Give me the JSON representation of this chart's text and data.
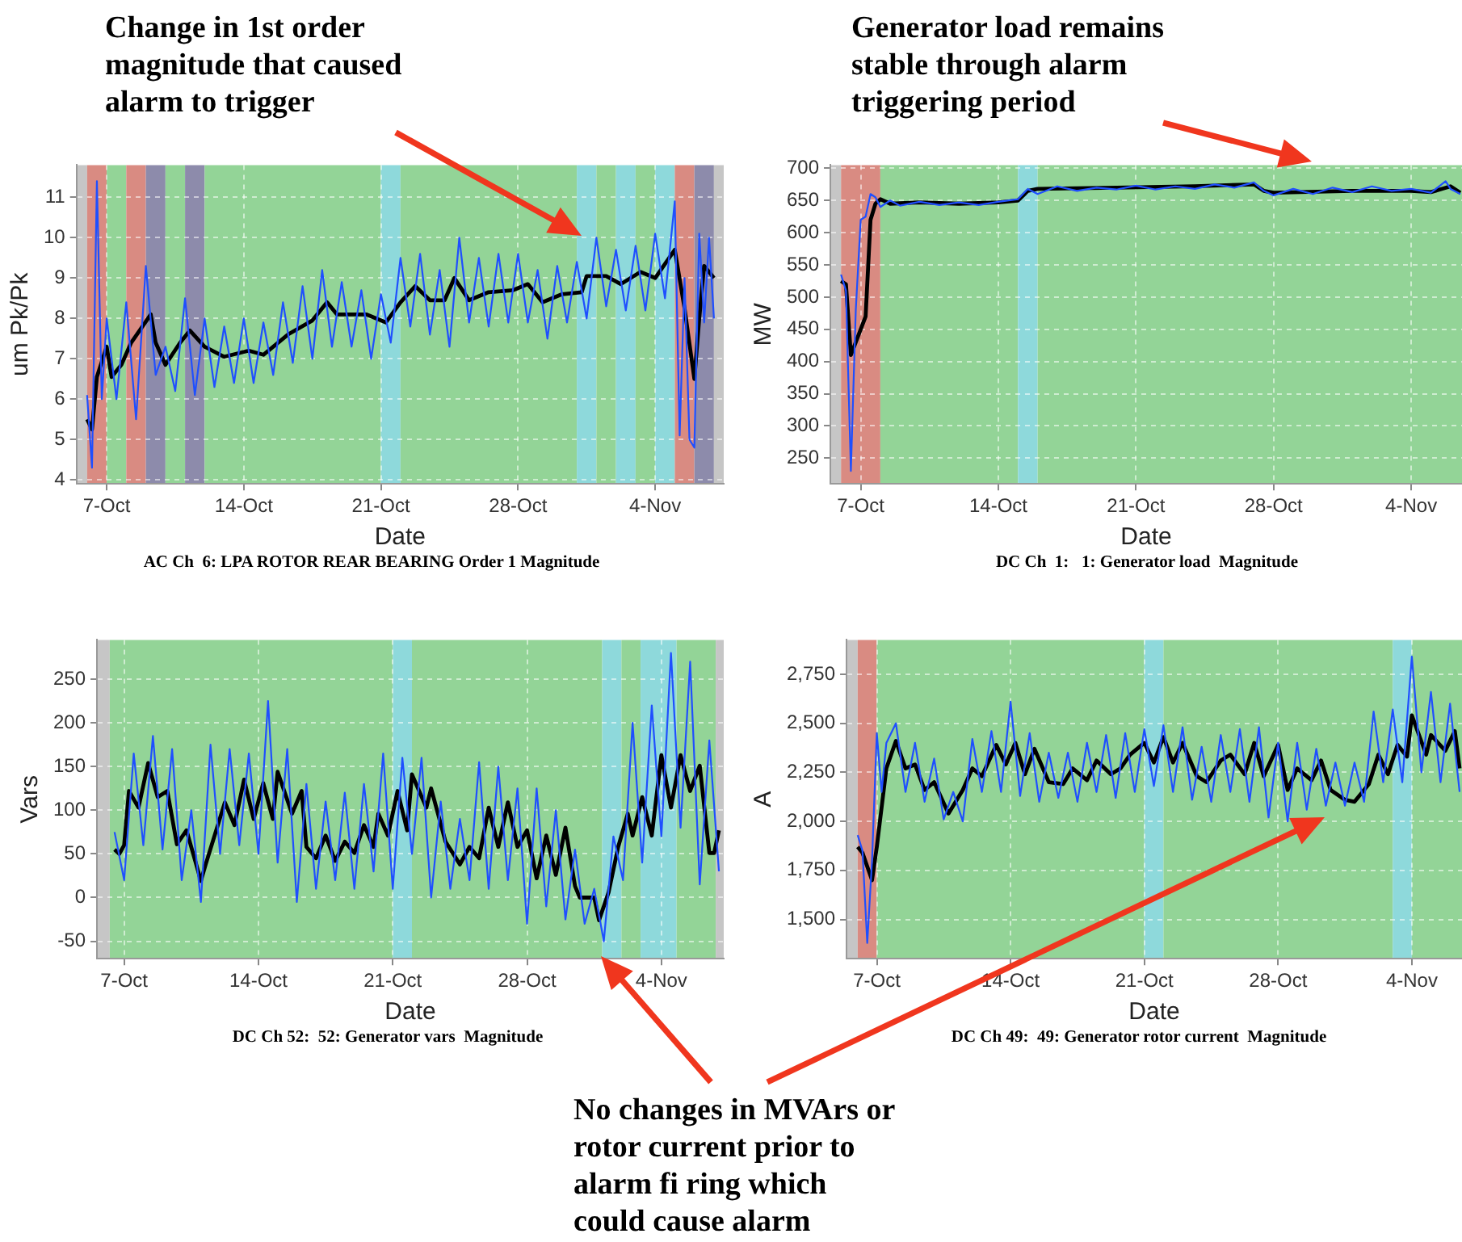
{
  "chart_data": [
    {
      "type": "line",
      "xlabel": "Date",
      "ylabel": "um Pk/Pk",
      "annotations": [
        "Change in 1st order magnitude that caused alarm to trigger",
        "AC Ch  6: LPA ROTOR REAR BEARING Order 1 Magnitude"
      ],
      "xlim": [
        "--10-05T11:00",
        "--11-07T12:00"
      ],
      "xticks": [
        {
          "value": "--10-07",
          "label": "7-Oct"
        },
        {
          "value": "--10-14",
          "label": "14-Oct"
        },
        {
          "value": "--10-21",
          "label": "21-Oct"
        },
        {
          "value": "--10-28",
          "label": "28-Oct"
        },
        {
          "value": "--11-04",
          "label": "4-Nov"
        }
      ],
      "ylim": [
        3.9,
        11.8
      ],
      "yticks": [
        4,
        5,
        6,
        7,
        8,
        9,
        10,
        11
      ],
      "grid": true,
      "marker": "none",
      "legend": false,
      "bands": [
        {
          "axis": "x",
          "from": "--10-05T11:00",
          "to": "--10-06",
          "color": "#c6c6c6"
        },
        {
          "axis": "x",
          "from": "--10-06",
          "to": "--10-07",
          "color": "#d98b82"
        },
        {
          "axis": "x",
          "from": "--10-07",
          "to": "--10-08",
          "color": "#93d497"
        },
        {
          "axis": "x",
          "from": "--10-08",
          "to": "--10-09",
          "color": "#d98b82"
        },
        {
          "axis": "x",
          "from": "--10-09",
          "to": "--10-10",
          "color": "#8d8bab"
        },
        {
          "axis": "x",
          "from": "--10-10",
          "to": "--10-11",
          "color": "#93d497"
        },
        {
          "axis": "x",
          "from": "--10-11",
          "to": "--10-12",
          "color": "#8d8bab"
        },
        {
          "axis": "x",
          "from": "--10-12",
          "to": "--10-21",
          "color": "#93d497"
        },
        {
          "axis": "x",
          "from": "--10-21",
          "to": "--10-22",
          "color": "#8ed9db"
        },
        {
          "axis": "x",
          "from": "--10-22",
          "to": "--10-31",
          "color": "#93d497"
        },
        {
          "axis": "x",
          "from": "--10-31",
          "to": "--11-01",
          "color": "#8ed9db"
        },
        {
          "axis": "x",
          "from": "--11-01",
          "to": "--11-02",
          "color": "#93d497"
        },
        {
          "axis": "x",
          "from": "--11-02",
          "to": "--11-03",
          "color": "#8ed9db"
        },
        {
          "axis": "x",
          "from": "--11-03",
          "to": "--11-04",
          "color": "#93d497"
        },
        {
          "axis": "x",
          "from": "--11-04",
          "to": "--11-05",
          "color": "#8ed9db"
        },
        {
          "axis": "x",
          "from": "--11-05",
          "to": "--11-06",
          "color": "#d98b82"
        },
        {
          "axis": "x",
          "from": "--11-06",
          "to": "--11-07",
          "color": "#8d8bab"
        },
        {
          "axis": "x",
          "from": "--11-07",
          "to": "--11-07T12:00",
          "color": "#c6c6c6"
        }
      ],
      "series": [
        {
          "color": "#1f4fff",
          "x": [
            "--10-06",
            "--10-06T06:00",
            "--10-06T12:00",
            "--10-06T18:00",
            "--10-07",
            "--10-07T12:00",
            "--10-08",
            "--10-08T12:00",
            "--10-09",
            "--10-09T12:00",
            "--10-10",
            "--10-10T12:00",
            "--10-11",
            "--10-11T12:00",
            "--10-12",
            "--10-12T12:00",
            "--10-13",
            "--10-13T12:00",
            "--10-14",
            "--10-14T12:00",
            "--10-15",
            "--10-15T12:00",
            "--10-16",
            "--10-16T12:00",
            "--10-17",
            "--10-17T12:00",
            "--10-18",
            "--10-18T12:00",
            "--10-19",
            "--10-19T12:00",
            "--10-20",
            "--10-20T12:00",
            "--10-21",
            "--10-21T12:00",
            "--10-22",
            "--10-22T12:00",
            "--10-23",
            "--10-23T12:00",
            "--10-24",
            "--10-24T12:00",
            "--10-25",
            "--10-25T12:00",
            "--10-26",
            "--10-26T12:00",
            "--10-27",
            "--10-27T12:00",
            "--10-28",
            "--10-28T12:00",
            "--10-29",
            "--10-29T12:00",
            "--10-30",
            "--10-30T12:00",
            "--10-31",
            "--10-31T12:00",
            "--11-01",
            "--11-01T12:00",
            "--11-02",
            "--11-02T12:00",
            "--11-03",
            "--11-03T12:00",
            "--11-04",
            "--11-04T12:00",
            "--11-05",
            "--11-05T06:00",
            "--11-05T12:00",
            "--11-05T18:00",
            "--11-06",
            "--11-06T06:00",
            "--11-06T12:00",
            "--11-06T18:00",
            "--11-07"
          ],
          "values": [
            6.1,
            4.3,
            11.4,
            6.0,
            8.0,
            6.0,
            8.4,
            5.5,
            9.3,
            6.6,
            7.3,
            6.2,
            8.5,
            6.1,
            8.0,
            6.3,
            7.8,
            6.4,
            8.0,
            6.4,
            7.9,
            6.6,
            8.4,
            6.9,
            8.8,
            7.0,
            9.2,
            7.3,
            8.9,
            7.3,
            8.7,
            7.0,
            8.6,
            7.4,
            9.5,
            7.8,
            9.6,
            7.6,
            9.2,
            7.3,
            10.0,
            7.9,
            9.5,
            7.8,
            9.6,
            7.9,
            9.6,
            7.9,
            9.2,
            7.5,
            9.3,
            7.9,
            9.4,
            8.0,
            10.0,
            8.3,
            9.7,
            8.2,
            9.8,
            8.2,
            10.1,
            8.5,
            10.9,
            5.1,
            9.0,
            5.0,
            4.8,
            10.1,
            7.9,
            10.0,
            8.0
          ]
        },
        {
          "color": "#000000",
          "x": [
            "--10-06",
            "--10-06T06:00",
            "--10-06T12:00",
            "--10-07",
            "--10-07T06:00",
            "--10-07T18:00",
            "--10-08T06:00",
            "--10-08T18:00",
            "--10-09T06:00",
            "--10-09T12:00",
            "--10-10",
            "--10-10T18:00",
            "--10-11T06:00",
            "--10-12",
            "--10-13",
            "--10-14T06:00",
            "--10-15",
            "--10-16T06:00",
            "--10-17T12:00",
            "--10-18T06:00",
            "--10-18T18:00",
            "--10-20T06:00",
            "--10-21T06:00",
            "--10-22",
            "--10-22T18:00",
            "--10-23T12:00",
            "--10-24T06:00",
            "--10-24T18:00",
            "--10-25T12:00",
            "--10-26T12:00",
            "--10-27T18:00",
            "--10-28T12:00",
            "--10-29T06:00",
            "--10-30T06:00",
            "--10-31T06:00",
            "--10-31T12:00",
            "--11-01T12:00",
            "--11-02T06:00",
            "--11-03T06:00",
            "--11-04",
            "--11-05",
            "--11-05T12:00",
            "--11-06",
            "--11-06T06:00",
            "--11-06T12:00",
            "--11-07"
          ],
          "values": [
            5.5,
            5.25,
            6.55,
            7.3,
            6.55,
            6.85,
            7.4,
            7.75,
            8.1,
            7.4,
            6.85,
            7.4,
            7.7,
            7.3,
            7.05,
            7.2,
            7.1,
            7.6,
            7.95,
            8.4,
            8.1,
            8.1,
            7.9,
            8.4,
            8.8,
            8.45,
            8.45,
            9.0,
            8.45,
            8.65,
            8.7,
            8.85,
            8.4,
            8.6,
            8.65,
            9.05,
            9.05,
            8.85,
            9.15,
            9.0,
            9.7,
            8.25,
            6.5,
            8.0,
            9.3,
            9.0
          ]
        }
      ]
    },
    {
      "type": "line",
      "xlabel": "Date",
      "ylabel": "MW",
      "annotations": [
        "Generator load remains stable through alarm triggering period",
        "DC Ch  1:   1: Generator load  Magnitude"
      ],
      "xlim": [
        "--10-05T11:00",
        "--11-06T14:00"
      ],
      "xticks": [
        {
          "value": "--10-07",
          "label": "7-Oct"
        },
        {
          "value": "--10-14",
          "label": "14-Oct"
        },
        {
          "value": "--10-21",
          "label": "21-Oct"
        },
        {
          "value": "--10-28",
          "label": "28-Oct"
        },
        {
          "value": "--11-04",
          "label": "4-Nov"
        }
      ],
      "ylim": [
        210,
        705
      ],
      "yticks": [
        250,
        300,
        350,
        400,
        450,
        500,
        550,
        600,
        650,
        700
      ],
      "grid": true,
      "marker": "none",
      "legend": false,
      "bands": [
        {
          "axis": "x",
          "from": "--10-05T11:00",
          "to": "--10-06",
          "color": "#c6c6c6"
        },
        {
          "axis": "x",
          "from": "--10-06",
          "to": "--10-08",
          "color": "#d98b82"
        },
        {
          "axis": "x",
          "from": "--10-08",
          "to": "--10-15",
          "color": "#93d497"
        },
        {
          "axis": "x",
          "from": "--10-15",
          "to": "--10-16",
          "color": "#8ed9db"
        },
        {
          "axis": "x",
          "from": "--10-16",
          "to": "--11-06T14:00",
          "color": "#93d497"
        }
      ],
      "series": [
        {
          "color": "#1f4fff",
          "x": [
            "--10-06",
            "--10-06T06:00",
            "--10-06T12:00",
            "--10-06T18:00",
            "--10-07",
            "--10-07T06:00",
            "--10-07T12:00",
            "--10-07T18:00",
            "--10-08",
            "--10-08T12:00",
            "--10-09",
            "--10-10",
            "--10-11",
            "--10-12",
            "--10-13",
            "--10-14",
            "--10-15",
            "--10-15T12:00",
            "--10-16",
            "--10-17",
            "--10-18",
            "--10-19",
            "--10-20",
            "--10-21",
            "--10-22",
            "--10-23",
            "--10-24",
            "--10-25",
            "--10-26",
            "--10-27",
            "--10-27T12:00",
            "--10-28",
            "--10-29",
            "--10-30",
            "--10-31",
            "--11-01",
            "--11-02",
            "--11-03",
            "--11-04",
            "--11-05",
            "--11-05T18:00",
            "--11-06",
            "--11-06T12:00"
          ],
          "values": [
            535,
            510,
            230,
            480,
            620,
            625,
            660,
            655,
            640,
            650,
            642,
            648,
            643,
            647,
            643,
            648,
            652,
            668,
            660,
            672,
            665,
            670,
            667,
            673,
            667,
            672,
            668,
            675,
            670,
            678,
            665,
            658,
            668,
            660,
            670,
            663,
            672,
            665,
            668,
            662,
            680,
            668,
            660
          ]
        },
        {
          "color": "#000000",
          "x": [
            "--10-06",
            "--10-06T06:00",
            "--10-06T12:00",
            "--10-07",
            "--10-07T06:00",
            "--10-07T12:00",
            "--10-07T18:00",
            "--10-08",
            "--10-08T12:00",
            "--10-10",
            "--10-12",
            "--10-14",
            "--10-15",
            "--10-15T12:00",
            "--10-16",
            "--10-20",
            "--10-24",
            "--10-27",
            "--10-27T12:00",
            "--10-28",
            "--11-01",
            "--11-04",
            "--11-05",
            "--11-06",
            "--11-06T12:00"
          ],
          "values": [
            525,
            520,
            410,
            450,
            470,
            620,
            645,
            652,
            645,
            647,
            645,
            647,
            650,
            665,
            668,
            670,
            672,
            675,
            665,
            662,
            665,
            665,
            663,
            672,
            662
          ]
        }
      ]
    },
    {
      "type": "line",
      "xlabel": "Date",
      "ylabel": "Vars",
      "annotations": [
        "No changes in MVArs or rotor current prior to alarm fi ring which could cause alarm",
        "DC Ch 52:  52: Generator vars  Magnitude"
      ],
      "xlim": [
        "--10-05T14:00",
        "--11-07T06:00"
      ],
      "xticks": [
        {
          "value": "--10-07",
          "label": "7-Oct"
        },
        {
          "value": "--10-14",
          "label": "14-Oct"
        },
        {
          "value": "--10-21",
          "label": "21-Oct"
        },
        {
          "value": "--10-28",
          "label": "28-Oct"
        },
        {
          "value": "--11-04",
          "label": "4-Nov"
        }
      ],
      "ylim": [
        -70,
        295
      ],
      "yticks": [
        -50,
        0,
        50,
        100,
        150,
        200,
        250
      ],
      "grid": true,
      "marker": "none",
      "legend": false,
      "bands": [
        {
          "axis": "x",
          "from": "--10-05T14:00",
          "to": "--10-06T06:00",
          "color": "#c6c6c6"
        },
        {
          "axis": "x",
          "from": "--10-06T06:00",
          "to": "--10-21",
          "color": "#93d497"
        },
        {
          "axis": "x",
          "from": "--10-21",
          "to": "--10-22",
          "color": "#8ed9db"
        },
        {
          "axis": "x",
          "from": "--10-22",
          "to": "--10-31T22:00",
          "color": "#93d497"
        },
        {
          "axis": "x",
          "from": "--10-31T22:00",
          "to": "--11-01T22:00",
          "color": "#8ed9db"
        },
        {
          "axis": "x",
          "from": "--11-01T22:00",
          "to": "--11-02T22:00",
          "color": "#93d497"
        },
        {
          "axis": "x",
          "from": "--11-02T22:00",
          "to": "--11-04T19:00",
          "color": "#8ed9db"
        },
        {
          "axis": "x",
          "from": "--11-04T19:00",
          "to": "--11-06T20:00",
          "color": "#93d497"
        },
        {
          "axis": "x",
          "from": "--11-06T20:00",
          "to": "--11-07T06:00",
          "color": "#c6c6c6"
        }
      ],
      "series": [
        {
          "color": "#1f4fff",
          "x": [
            "--10-06T12:00",
            "--10-07",
            "--10-07T12:00",
            "--10-08",
            "--10-08T12:00",
            "--10-09",
            "--10-09T12:00",
            "--10-10",
            "--10-10T12:00",
            "--10-11",
            "--10-11T12:00",
            "--10-12",
            "--10-12T12:00",
            "--10-13",
            "--10-13T12:00",
            "--10-14",
            "--10-14T12:00",
            "--10-15",
            "--10-15T12:00",
            "--10-16",
            "--10-16T12:00",
            "--10-17",
            "--10-17T12:00",
            "--10-18",
            "--10-18T12:00",
            "--10-19",
            "--10-19T12:00",
            "--10-20",
            "--10-20T12:00",
            "--10-21",
            "--10-21T12:00",
            "--10-22",
            "--10-22T12:00",
            "--10-23",
            "--10-23T12:00",
            "--10-24",
            "--10-24T12:00",
            "--10-25",
            "--10-25T12:00",
            "--10-26",
            "--10-26T12:00",
            "--10-27",
            "--10-27T12:00",
            "--10-28",
            "--10-28T12:00",
            "--10-29",
            "--10-29T12:00",
            "--10-30",
            "--10-30T12:00",
            "--10-31",
            "--10-31T12:00",
            "--11-01",
            "--11-01T12:00",
            "--11-02",
            "--11-02T12:00",
            "--11-03",
            "--11-03T12:00",
            "--11-04",
            "--11-04T12:00",
            "--11-05",
            "--11-05T12:00",
            "--11-06",
            "--11-06T12:00",
            "--11-07"
          ],
          "values": [
            75,
            20,
            165,
            60,
            185,
            55,
            170,
            20,
            100,
            -5,
            175,
            50,
            170,
            60,
            165,
            50,
            225,
            40,
            170,
            -5,
            130,
            10,
            110,
            20,
            120,
            10,
            130,
            30,
            165,
            10,
            160,
            50,
            160,
            0,
            110,
            10,
            90,
            20,
            155,
            10,
            150,
            20,
            125,
            -30,
            125,
            -10,
            100,
            -25,
            55,
            -30,
            10,
            -50,
            70,
            20,
            200,
            40,
            220,
            70,
            280,
            80,
            270,
            15,
            180,
            30
          ]
        },
        {
          "color": "#000000",
          "x": [
            "--10-06T12:00",
            "--10-06T18:00",
            "--10-07",
            "--10-07T06:00",
            "--10-07T18:00",
            "--10-08T06:00",
            "--10-08T18:00",
            "--10-09T06:00",
            "--10-09T18:00",
            "--10-10T06:00",
            "--10-11",
            "--10-11T06:00",
            "--10-12T06:00",
            "--10-12T18:00",
            "--10-13T06:00",
            "--10-13T18:00",
            "--10-14T06:00",
            "--10-14T18:00",
            "--10-15",
            "--10-15T18:00",
            "--10-16T06:00",
            "--10-16T12:00",
            "--10-17",
            "--10-17T12:00",
            "--10-18",
            "--10-18T12:00",
            "--10-19",
            "--10-19T12:00",
            "--10-20",
            "--10-20T06:00",
            "--10-20T18:00",
            "--10-21T06:00",
            "--10-21T18:00",
            "--10-22",
            "--10-22T18:00",
            "--10-23",
            "--10-23T18:00",
            "--10-24T12:00",
            "--10-25",
            "--10-25T12:00",
            "--10-26",
            "--10-26T12:00",
            "--10-27",
            "--10-27T12:00",
            "--10-28",
            "--10-28T12:00",
            "--10-29",
            "--10-29T12:00",
            "--10-30",
            "--10-30T12:00",
            "--10-30T18:00",
            "--10-31T12:00",
            "--10-31T18:00",
            "--11-01T06:00",
            "--11-01T18:00",
            "--11-02T06:00",
            "--11-02T12:00",
            "--11-03",
            "--11-03T12:00",
            "--11-04",
            "--11-04T12:00",
            "--11-05",
            "--11-05T12:00",
            "--11-06",
            "--11-06T12:00",
            "--11-06T18:00",
            "--11-07"
          ],
          "values": [
            55,
            50,
            60,
            122,
            103,
            154,
            115,
            122,
            61,
            77,
            19,
            38,
            109,
            83,
            135,
            90,
            131,
            90,
            144,
            96,
            122,
            58,
            45,
            71,
            42,
            64,
            51,
            83,
            58,
            96,
            71,
            122,
            77,
            141,
            103,
            125,
            64,
            38,
            58,
            45,
            103,
            58,
            109,
            58,
            77,
            22,
            71,
            26,
            80,
            13,
            0,
            0,
            -26,
            6,
            58,
            96,
            71,
            115,
            71,
            163,
            103,
            163,
            122,
            151,
            51,
            51,
            77
          ]
        }
      ]
    },
    {
      "type": "line",
      "xlabel": "Date",
      "ylabel": "A",
      "annotations": [
        "DC Ch 49:  49: Generator rotor current  Magnitude"
      ],
      "xlim": [
        "--10-05T10:00",
        "--11-06T15:00"
      ],
      "xticks": [
        {
          "value": "--10-07",
          "label": "7-Oct"
        },
        {
          "value": "--10-14",
          "label": "14-Oct"
        },
        {
          "value": "--10-21",
          "label": "21-Oct"
        },
        {
          "value": "--10-28",
          "label": "28-Oct"
        },
        {
          "value": "--11-04",
          "label": "4-Nov"
        }
      ],
      "ylim": [
        1300,
        2925
      ],
      "yticks": [
        {
          "value": 1500,
          "label": "1,500"
        },
        {
          "value": 1750,
          "label": "1,750"
        },
        {
          "value": 2000,
          "label": "2,000"
        },
        {
          "value": 2250,
          "label": "2,250"
        },
        {
          "value": 2500,
          "label": "2,500"
        },
        {
          "value": 2750,
          "label": "2,750"
        }
      ],
      "grid": true,
      "marker": "none",
      "legend": false,
      "bands": [
        {
          "axis": "x",
          "from": "--10-05T10:00",
          "to": "--10-06",
          "color": "#c6c6c6"
        },
        {
          "axis": "x",
          "from": "--10-06",
          "to": "--10-07",
          "color": "#d98b82"
        },
        {
          "axis": "x",
          "from": "--10-07",
          "to": "--10-21",
          "color": "#93d497"
        },
        {
          "axis": "x",
          "from": "--10-21",
          "to": "--10-22",
          "color": "#8ed9db"
        },
        {
          "axis": "x",
          "from": "--10-22",
          "to": "--11-03",
          "color": "#93d497"
        },
        {
          "axis": "x",
          "from": "--11-03",
          "to": "--11-04",
          "color": "#8ed9db"
        },
        {
          "axis": "x",
          "from": "--11-04",
          "to": "--11-06T15:00",
          "color": "#93d497"
        }
      ],
      "series": [
        {
          "color": "#1f4fff",
          "x": [
            "--10-06",
            "--10-06T06:00",
            "--10-06T12:00",
            "--10-06T18:00",
            "--10-07",
            "--10-07T06:00",
            "--10-07T12:00",
            "--10-08",
            "--10-08T12:00",
            "--10-09",
            "--10-09T12:00",
            "--10-10",
            "--10-10T12:00",
            "--10-11",
            "--10-11T12:00",
            "--10-12",
            "--10-12T12:00",
            "--10-13",
            "--10-13T12:00",
            "--10-14",
            "--10-14T12:00",
            "--10-15",
            "--10-15T12:00",
            "--10-16",
            "--10-16T12:00",
            "--10-17",
            "--10-17T12:00",
            "--10-18",
            "--10-18T12:00",
            "--10-19",
            "--10-19T12:00",
            "--10-20",
            "--10-20T12:00",
            "--10-21",
            "--10-21T12:00",
            "--10-22",
            "--10-22T12:00",
            "--10-23",
            "--10-23T12:00",
            "--10-24",
            "--10-24T12:00",
            "--10-25",
            "--10-25T12:00",
            "--10-26",
            "--10-26T12:00",
            "--10-27",
            "--10-27T12:00",
            "--10-28",
            "--10-28T12:00",
            "--10-29",
            "--10-29T12:00",
            "--10-30",
            "--10-30T12:00",
            "--10-31",
            "--10-31T12:00",
            "--11-01",
            "--11-01T12:00",
            "--11-02",
            "--11-02T12:00",
            "--11-03",
            "--11-03T12:00",
            "--11-04",
            "--11-04T12:00",
            "--11-05",
            "--11-05T12:00",
            "--11-06",
            "--11-06T12:00"
          ],
          "values": [
            1930,
            1850,
            1380,
            1800,
            2450,
            2150,
            2400,
            2500,
            2150,
            2400,
            2100,
            2320,
            2010,
            2150,
            2000,
            2420,
            2150,
            2460,
            2150,
            2610,
            2130,
            2450,
            2100,
            2350,
            2120,
            2350,
            2100,
            2400,
            2150,
            2440,
            2120,
            2450,
            2150,
            2470,
            2180,
            2490,
            2150,
            2480,
            2110,
            2380,
            2100,
            2440,
            2150,
            2470,
            2100,
            2480,
            2020,
            2400,
            2000,
            2400,
            2060,
            2370,
            2080,
            2300,
            2080,
            2300,
            2100,
            2560,
            2200,
            2570,
            2200,
            2840,
            2250,
            2660,
            2200,
            2600,
            2150
          ]
        },
        {
          "color": "#000000",
          "x": [
            "--10-06",
            "--10-06T06:00",
            "--10-06T18:00",
            "--10-07",
            "--10-07T12:00",
            "--10-08",
            "--10-08T12:00",
            "--10-09",
            "--10-09T12:00",
            "--10-10",
            "--10-10T18:00",
            "--10-11T12:00",
            "--10-12",
            "--10-12T12:00",
            "--10-13T06:00",
            "--10-13T18:00",
            "--10-14T06:00",
            "--10-14T18:00",
            "--10-15T06:00",
            "--10-16",
            "--10-16T18:00",
            "--10-17T06:00",
            "--10-18",
            "--10-18T12:00",
            "--10-19T06:00",
            "--10-19T18:00",
            "--10-20T06:00",
            "--10-21",
            "--10-21T12:00",
            "--10-22",
            "--10-22T12:00",
            "--10-23",
            "--10-23T18:00",
            "--10-24T06:00",
            "--10-25",
            "--10-25T12:00",
            "--10-26T06:00",
            "--10-26T18:00",
            "--10-27T06:00",
            "--10-28",
            "--10-28T12:00",
            "--10-29",
            "--10-29T18:00",
            "--10-30T06:00",
            "--10-30T18:00",
            "--10-31T12:00",
            "--11-01",
            "--11-01T18:00",
            "--11-02T06:00",
            "--11-02T18:00",
            "--11-03T06:00",
            "--11-03T18:00",
            "--11-04",
            "--11-04T18:00",
            "--11-05",
            "--11-05T18:00",
            "--11-06T06:00",
            "--11-06T12:00"
          ],
          "values": [
            1870,
            1840,
            1700,
            1870,
            2270,
            2410,
            2270,
            2290,
            2160,
            2200,
            2040,
            2160,
            2270,
            2230,
            2390,
            2290,
            2400,
            2240,
            2370,
            2200,
            2190,
            2270,
            2210,
            2310,
            2240,
            2270,
            2340,
            2400,
            2300,
            2430,
            2300,
            2400,
            2230,
            2200,
            2310,
            2340,
            2240,
            2400,
            2230,
            2390,
            2160,
            2270,
            2210,
            2310,
            2160,
            2110,
            2100,
            2190,
            2340,
            2240,
            2390,
            2330,
            2540,
            2340,
            2440,
            2360,
            2460,
            2270
          ]
        }
      ]
    }
  ]
}
